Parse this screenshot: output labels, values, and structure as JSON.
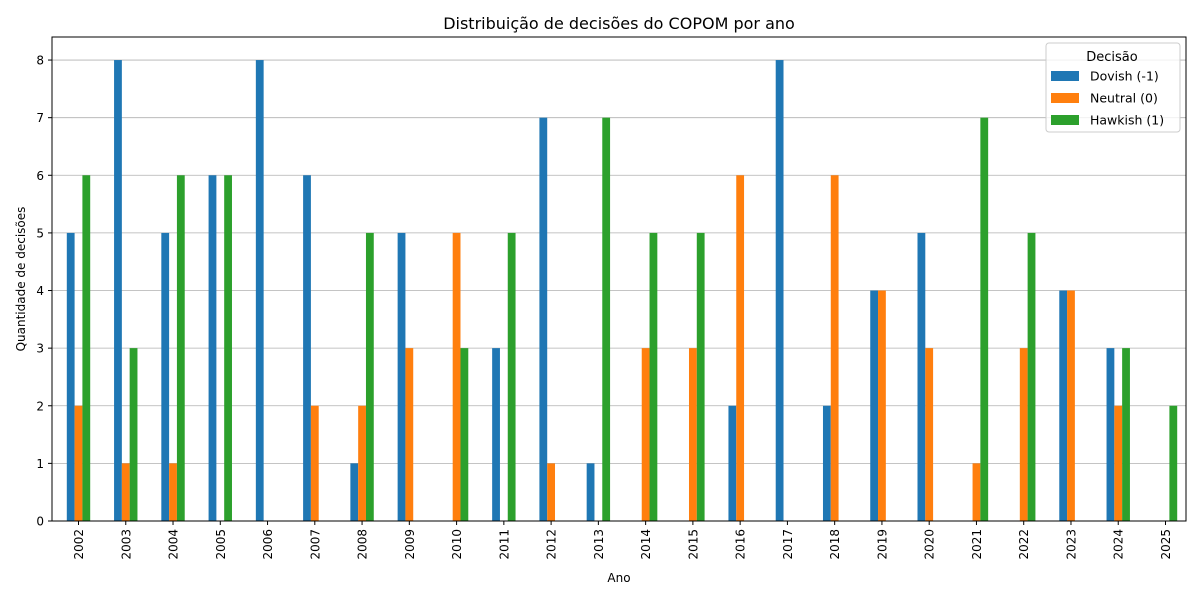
{
  "chart_data": {
    "type": "bar",
    "title": "Distribuição de decisões do COPOM por ano",
    "xlabel": "Ano",
    "ylabel": "Quantidade de decisões",
    "categories": [
      "2002",
      "2003",
      "2004",
      "2005",
      "2006",
      "2007",
      "2008",
      "2009",
      "2010",
      "2011",
      "2012",
      "2013",
      "2014",
      "2015",
      "2016",
      "2017",
      "2018",
      "2019",
      "2020",
      "2021",
      "2022",
      "2023",
      "2024",
      "2025"
    ],
    "series": [
      {
        "name": "Dovish (-1)",
        "color": "#1f77b4",
        "values": [
          5,
          8,
          5,
          6,
          8,
          6,
          1,
          5,
          0,
          3,
          7,
          1,
          0,
          0,
          2,
          8,
          2,
          4,
          5,
          0,
          0,
          4,
          3,
          0
        ]
      },
      {
        "name": "Neutral (0)",
        "color": "#ff7f0e",
        "values": [
          2,
          1,
          1,
          0,
          0,
          2,
          2,
          3,
          5,
          0,
          1,
          0,
          3,
          3,
          6,
          0,
          6,
          4,
          3,
          1,
          3,
          4,
          2,
          0
        ]
      },
      {
        "name": "Hawkish (1)",
        "color": "#2ca02c",
        "values": [
          6,
          3,
          6,
          6,
          0,
          0,
          5,
          0,
          3,
          5,
          0,
          7,
          5,
          5,
          0,
          0,
          0,
          0,
          0,
          7,
          5,
          0,
          3,
          2
        ]
      }
    ],
    "ylim": [
      0,
      8.4
    ],
    "yticks": [
      0,
      1,
      2,
      3,
      4,
      5,
      6,
      7,
      8
    ],
    "grid": "y",
    "legend": {
      "title": "Decisão",
      "position": "top-right"
    }
  }
}
